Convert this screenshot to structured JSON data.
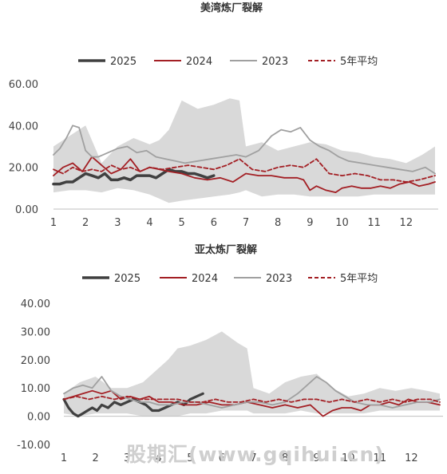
{
  "watermark": "股期汇(www.gqihui.cn)",
  "colors": {
    "s2025": "#404040",
    "s2024": "#a31f24",
    "s2023": "#a0a0a0",
    "avg": "#a31f24",
    "band": "#d9d9d9"
  },
  "chart_data": [
    {
      "type": "line",
      "title": "美湾炼厂裂解",
      "legend_position": "top",
      "x_ticks": [
        "1",
        "2",
        "3",
        "4",
        "5",
        "6",
        "7",
        "8",
        "9",
        "10",
        "11",
        "12"
      ],
      "xlim": [
        1,
        13
      ],
      "ylim": [
        0,
        60
      ],
      "y_ticks": [
        "0.00",
        "20.00",
        "40.00",
        "60.00"
      ],
      "band": {
        "x": [
          1,
          1.5,
          2,
          2.5,
          3,
          3.5,
          4,
          4.3,
          4.6,
          5,
          5.5,
          6,
          6.5,
          6.8,
          7,
          7.5,
          8,
          8.5,
          9,
          9.5,
          10,
          10.5,
          11,
          11.5,
          12,
          12.5,
          12.9
        ],
        "upper": [
          30,
          35,
          40,
          22,
          30,
          34,
          31,
          33,
          38,
          52,
          48,
          50,
          53,
          52,
          30,
          32,
          28,
          30,
          32,
          31,
          28,
          27,
          25,
          24,
          22,
          26,
          30
        ],
        "lower": [
          8,
          9,
          9,
          8,
          10,
          9,
          7,
          5,
          3,
          4,
          5,
          6,
          7,
          8,
          9,
          6,
          7,
          7,
          6,
          6,
          6,
          6,
          7,
          7,
          7,
          7,
          7
        ]
      },
      "series": [
        {
          "name": "2025",
          "key": "s2025",
          "dashed": false,
          "width": 3.5,
          "x": [
            1,
            1.2,
            1.4,
            1.6,
            1.8,
            2,
            2.2,
            2.4,
            2.6,
            2.8,
            3,
            3.2,
            3.4,
            3.6,
            3.8,
            4,
            4.2,
            4.4,
            4.6,
            4.8,
            5,
            5.2,
            5.4,
            5.6,
            5.8,
            6
          ],
          "y": [
            12,
            12,
            13,
            13,
            15,
            17,
            16,
            15,
            17,
            14,
            14,
            15,
            14,
            16,
            16,
            16,
            15,
            17,
            19,
            18,
            18,
            17,
            17,
            16,
            15,
            16
          ]
        },
        {
          "name": "2024",
          "key": "s2024",
          "dashed": false,
          "width": 1.8,
          "x": [
            1,
            1.3,
            1.6,
            1.9,
            2.2,
            2.5,
            2.8,
            3.1,
            3.4,
            3.7,
            4,
            4.3,
            4.6,
            5,
            5.4,
            5.8,
            6.2,
            6.6,
            7,
            7.4,
            7.8,
            8.2,
            8.6,
            8.8,
            9,
            9.2,
            9.5,
            9.8,
            10,
            10.3,
            10.6,
            10.9,
            11.2,
            11.5,
            11.8,
            12.1,
            12.4,
            12.7,
            12.9
          ],
          "y": [
            16,
            20,
            22,
            18,
            25,
            21,
            17,
            19,
            24,
            18,
            20,
            19,
            18,
            17,
            15,
            14,
            15,
            13,
            17,
            16,
            16,
            15,
            15,
            14,
            9,
            11,
            9,
            8,
            10,
            11,
            10,
            10,
            11,
            10,
            12,
            13,
            11,
            12,
            13
          ]
        },
        {
          "name": "2023",
          "key": "s2023",
          "dashed": false,
          "width": 1.8,
          "x": [
            1,
            1.2,
            1.4,
            1.6,
            1.8,
            2,
            2.2,
            2.4,
            2.7,
            3,
            3.3,
            3.6,
            3.9,
            4.2,
            4.5,
            4.8,
            5.1,
            5.5,
            5.9,
            6.3,
            6.7,
            7,
            7.4,
            7.8,
            8.1,
            8.4,
            8.7,
            9,
            9.3,
            9.6,
            9.9,
            10.2,
            10.6,
            11,
            11.4,
            11.8,
            12.2,
            12.6,
            12.9
          ],
          "y": [
            26,
            29,
            34,
            40,
            39,
            28,
            25,
            25,
            27,
            29,
            30,
            27,
            28,
            25,
            24,
            23,
            22,
            23,
            24,
            25,
            26,
            25,
            28,
            35,
            38,
            37,
            39,
            33,
            30,
            28,
            25,
            23,
            22,
            21,
            20,
            19,
            18,
            20,
            17
          ]
        },
        {
          "name": "5年平均",
          "key": "avg",
          "dashed": true,
          "width": 1.8,
          "x": [
            1,
            1.3,
            1.6,
            1.9,
            2.2,
            2.5,
            2.8,
            3.1,
            3.4,
            3.7,
            4,
            4.4,
            4.8,
            5.2,
            5.6,
            6,
            6.4,
            6.8,
            7.2,
            7.6,
            8,
            8.4,
            8.8,
            9.2,
            9.6,
            10,
            10.4,
            10.8,
            11.2,
            11.6,
            12,
            12.4,
            12.9
          ],
          "y": [
            19,
            17,
            20,
            18,
            19,
            18,
            21,
            19,
            20,
            18,
            20,
            19,
            20,
            21,
            20,
            19,
            21,
            24,
            19,
            18,
            20,
            21,
            20,
            24,
            17,
            16,
            17,
            16,
            14,
            14,
            13,
            14,
            16
          ]
        }
      ]
    },
    {
      "type": "line",
      "title": "亚太炼厂裂解",
      "legend_position": "top",
      "x_ticks": [
        "1",
        "2",
        "3",
        "4",
        "5",
        "6",
        "7",
        "8",
        "9",
        "10",
        "11",
        "12"
      ],
      "xlim": [
        1,
        13
      ],
      "ylim": [
        -10,
        40
      ],
      "y_ticks": [
        "-10.00",
        "0.00",
        "10.00",
        "20.00",
        "30.00",
        "40.00"
      ],
      "band": {
        "x": [
          1,
          1.5,
          2,
          2.5,
          3,
          3.5,
          4,
          4.3,
          4.6,
          5,
          5.5,
          6,
          6.5,
          6.8,
          7,
          7.5,
          8,
          8.5,
          9,
          9.5,
          10,
          10.5,
          11,
          11.5,
          12,
          12.5,
          12.9
        ],
        "upper": [
          8,
          12,
          14,
          10,
          10,
          12,
          17,
          20,
          24,
          25,
          27,
          30,
          26,
          24,
          10,
          8,
          12,
          14,
          15,
          10,
          7,
          8,
          10,
          9,
          10,
          9,
          8
        ],
        "lower": [
          1,
          0,
          1,
          1,
          1,
          0,
          0,
          0,
          0,
          1,
          1,
          2,
          2,
          2,
          1,
          1,
          1,
          2,
          1,
          1,
          1,
          1,
          2,
          2,
          2,
          2,
          2
        ]
      },
      "series": [
        {
          "name": "2025",
          "key": "s2025",
          "dashed": false,
          "width": 3.2,
          "x": [
            1,
            1.15,
            1.3,
            1.45,
            1.6,
            1.75,
            1.9,
            2.05,
            2.2,
            2.4,
            2.6,
            2.8,
            3,
            3.2,
            3.4,
            3.6,
            3.8,
            4,
            4.2,
            4.4,
            4.6,
            4.8,
            5,
            5.2,
            5.4
          ],
          "y": [
            6,
            3,
            1,
            0,
            1,
            2,
            3,
            2,
            4,
            3,
            5,
            4,
            5,
            6,
            5,
            4,
            2,
            2,
            3,
            4,
            5,
            4,
            6,
            7,
            8
          ]
        },
        {
          "name": "2024",
          "key": "s2024",
          "dashed": false,
          "width": 1.8,
          "x": [
            1,
            1.3,
            1.6,
            1.9,
            2.2,
            2.5,
            2.8,
            3.1,
            3.4,
            3.7,
            4,
            4.4,
            4.8,
            5.2,
            5.6,
            6,
            6.4,
            6.8,
            7.2,
            7.6,
            8,
            8.4,
            8.8,
            9,
            9.2,
            9.5,
            9.8,
            10.1,
            10.4,
            10.7,
            11,
            11.3,
            11.6,
            11.9,
            12.2,
            12.5,
            12.9
          ],
          "y": [
            6,
            7,
            8,
            9,
            8,
            9,
            6,
            7,
            6,
            7,
            5,
            5,
            4,
            4,
            5,
            4,
            4,
            5,
            4,
            3,
            4,
            3,
            4,
            2,
            0,
            2,
            3,
            3,
            2,
            4,
            4,
            5,
            4,
            6,
            5,
            5,
            4
          ]
        },
        {
          "name": "2023",
          "key": "s2023",
          "dashed": false,
          "width": 1.8,
          "x": [
            1,
            1.3,
            1.6,
            1.9,
            2.2,
            2.5,
            2.8,
            3.1,
            3.4,
            3.7,
            4,
            4.4,
            4.8,
            5.2,
            5.6,
            6,
            6.4,
            6.8,
            7.2,
            7.6,
            8,
            8.4,
            8.8,
            9,
            9.3,
            9.6,
            9.9,
            10.2,
            10.6,
            11,
            11.4,
            11.8,
            12.2,
            12.6,
            12.9
          ],
          "y": [
            8,
            10,
            11,
            10,
            14,
            9,
            7,
            6,
            5,
            5,
            4,
            4,
            5,
            5,
            4,
            3,
            4,
            5,
            5,
            4,
            5,
            8,
            12,
            14,
            12,
            9,
            7,
            5,
            4,
            4,
            3,
            4,
            5,
            5,
            6
          ]
        },
        {
          "name": "5年平均",
          "key": "avg",
          "dashed": true,
          "width": 1.8,
          "x": [
            1,
            1.4,
            1.8,
            2.2,
            2.6,
            3,
            3.4,
            3.8,
            4.2,
            4.6,
            5,
            5.4,
            5.8,
            6.2,
            6.6,
            7,
            7.4,
            7.8,
            8.2,
            8.6,
            9,
            9.4,
            9.8,
            10.2,
            10.6,
            11,
            11.4,
            11.8,
            12.2,
            12.6,
            12.9
          ],
          "y": [
            6,
            7,
            6,
            7,
            6,
            7,
            6,
            6,
            6,
            6,
            5,
            5,
            6,
            5,
            5,
            6,
            5,
            6,
            5,
            6,
            6,
            5,
            6,
            5,
            6,
            5,
            6,
            5,
            6,
            6,
            5
          ]
        }
      ]
    }
  ]
}
